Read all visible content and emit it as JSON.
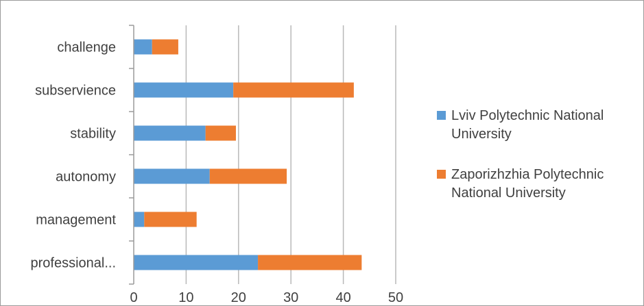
{
  "chart_data": {
    "type": "bar",
    "orientation": "horizontal",
    "stacked": true,
    "title": "",
    "xlabel": "",
    "ylabel": "",
    "categories": [
      "challenge",
      "subservience",
      "stability",
      "autonomy",
      "management",
      "professional..."
    ],
    "series": [
      {
        "name": "Lviv Polytechnic National University",
        "name_lines": [
          "Lviv Polytechnic National",
          "University"
        ],
        "color": "#5B9BD5",
        "values": [
          3.5,
          19,
          13.7,
          14.5,
          2,
          23.7
        ]
      },
      {
        "name": "Zaporizhzhia Polytechnic National University",
        "name_lines": [
          "Zaporizhzhia Polytechnic",
          "National University"
        ],
        "color": "#ED7D31",
        "values": [
          5,
          23,
          5.8,
          14.7,
          10,
          19.8
        ]
      }
    ],
    "xlim": [
      0,
      50
    ],
    "xticks": [
      "0",
      "10",
      "20",
      "30",
      "40",
      "50"
    ],
    "grid": "vertical",
    "legend_position": "right"
  }
}
